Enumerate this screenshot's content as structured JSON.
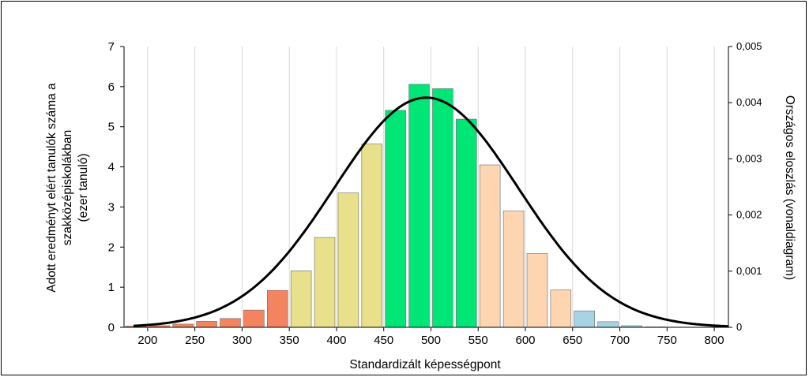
{
  "chart_data": {
    "type": "bar",
    "xlabel": "Standardizált képességpont",
    "ylabel_lines": [
      "Adott eredményt elért tanulók száma a",
      "szakközépiskolákban",
      "(ezer tanuló)"
    ],
    "y2label": "Országos eloszlás (vonaldiagram)",
    "xlim": [
      175,
      815
    ],
    "ylim": [
      0,
      7
    ],
    "y2lim": [
      0,
      0.005
    ],
    "x_ticks": [
      200,
      250,
      300,
      350,
      400,
      450,
      500,
      550,
      600,
      650,
      700,
      750,
      800
    ],
    "y_ticks": [
      0,
      1,
      2,
      3,
      4,
      5,
      6,
      7
    ],
    "y2_ticks": [
      "0",
      "0,001",
      "0,002",
      "0,003",
      "0,004",
      "0,005"
    ],
    "grid": true,
    "bin_width": 25,
    "bars": [
      {
        "x": 187.5,
        "value": 0.03,
        "color": "#F4845F"
      },
      {
        "x": 212.5,
        "value": 0.04,
        "color": "#F4845F"
      },
      {
        "x": 237.5,
        "value": 0.08,
        "color": "#F4845F"
      },
      {
        "x": 262.5,
        "value": 0.15,
        "color": "#F4845F"
      },
      {
        "x": 287.5,
        "value": 0.22,
        "color": "#F4845F"
      },
      {
        "x": 312.5,
        "value": 0.43,
        "color": "#F4845F"
      },
      {
        "x": 337.5,
        "value": 0.92,
        "color": "#F4845F"
      },
      {
        "x": 362.5,
        "value": 1.41,
        "color": "#E8E08A"
      },
      {
        "x": 387.5,
        "value": 2.24,
        "color": "#E8E08A"
      },
      {
        "x": 412.5,
        "value": 3.35,
        "color": "#E8E08A"
      },
      {
        "x": 437.5,
        "value": 4.57,
        "color": "#E8E08A"
      },
      {
        "x": 462.5,
        "value": 5.41,
        "color": "#00E676"
      },
      {
        "x": 487.5,
        "value": 6.06,
        "color": "#00E676"
      },
      {
        "x": 512.5,
        "value": 5.95,
        "color": "#00E676"
      },
      {
        "x": 537.5,
        "value": 5.19,
        "color": "#00E676"
      },
      {
        "x": 562.5,
        "value": 4.05,
        "color": "#FDD5B1"
      },
      {
        "x": 587.5,
        "value": 2.9,
        "color": "#FDD5B1"
      },
      {
        "x": 612.5,
        "value": 1.84,
        "color": "#FDD5B1"
      },
      {
        "x": 637.5,
        "value": 0.93,
        "color": "#FDD5B1"
      },
      {
        "x": 662.5,
        "value": 0.41,
        "color": "#A7D3E4"
      },
      {
        "x": 687.5,
        "value": 0.14,
        "color": "#A7D3E4"
      },
      {
        "x": 712.5,
        "value": 0.04,
        "color": "#A7D3E4"
      },
      {
        "x": 737.5,
        "value": 0.01,
        "color": "#A7D3E4"
      },
      {
        "x": 762.5,
        "value": 0.005,
        "color": "#A7D3E4"
      }
    ],
    "line_series": {
      "axis": "y2",
      "distribution": "normal",
      "mean": 495,
      "sd": 97.5,
      "peak_density": 0.00409,
      "color": "#000000"
    }
  }
}
